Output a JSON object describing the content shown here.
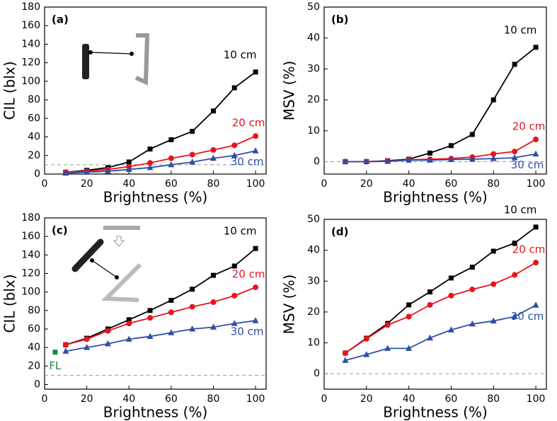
{
  "chart_data": [
    {
      "type": "line",
      "panel_label": "(a)",
      "x_label": "Brightness (%)",
      "y_label": "CIL (blx)",
      "x": [
        10,
        20,
        30,
        40,
        50,
        60,
        70,
        80,
        90,
        100
      ],
      "xlim": [
        0,
        105
      ],
      "xticks": [
        0,
        20,
        40,
        60,
        80,
        100
      ],
      "ylim": [
        0,
        180
      ],
      "yticks": [
        0,
        20,
        40,
        60,
        80,
        100,
        120,
        140,
        160,
        180
      ],
      "reference_line": 10,
      "series": [
        {
          "name": "10 cm",
          "color": "#000000",
          "marker": "square",
          "values": [
            2,
            4,
            7,
            13,
            27,
            37,
            46,
            68,
            93,
            110
          ]
        },
        {
          "name": "20 cm",
          "color": "#e8141c",
          "marker": "circle",
          "values": [
            2,
            3,
            5,
            8,
            12,
            17,
            21,
            26,
            31,
            41
          ]
        },
        {
          "name": "30 cm",
          "color": "#2e4fa8",
          "marker": "triangle",
          "values": [
            1,
            2,
            3,
            5,
            7,
            10,
            13,
            17,
            20,
            25
          ]
        }
      ]
    },
    {
      "type": "line",
      "panel_label": "(b)",
      "x_label": "Brightness (%)",
      "y_label": "MSV (%)",
      "x": [
        10,
        20,
        30,
        40,
        50,
        60,
        70,
        80,
        90,
        100
      ],
      "xlim": [
        0,
        105
      ],
      "xticks": [
        0,
        20,
        40,
        60,
        80,
        100
      ],
      "ylim": [
        -4,
        50
      ],
      "yticks": [
        0,
        10,
        20,
        30,
        40,
        50
      ],
      "reference_line": 0,
      "series": [
        {
          "name": "10 cm",
          "color": "#000000",
          "marker": "square",
          "values": [
            0,
            0,
            0.3,
            0.8,
            2.8,
            5.2,
            8.8,
            20,
            31.5,
            37
          ]
        },
        {
          "name": "20 cm",
          "color": "#e8141c",
          "marker": "circle",
          "values": [
            0,
            0,
            0.2,
            0.6,
            0.8,
            1,
            1.5,
            2.5,
            3.3,
            7.2
          ]
        },
        {
          "name": "30 cm",
          "color": "#2e4fa8",
          "marker": "triangle",
          "values": [
            0,
            0,
            0.1,
            0.5,
            0.5,
            0.7,
            0.8,
            1,
            1.3,
            2.5
          ]
        }
      ]
    },
    {
      "type": "line",
      "panel_label": "(c)",
      "x_label": "Brightness (%)",
      "y_label": "CIL (blx)",
      "x": [
        10,
        20,
        30,
        40,
        50,
        60,
        70,
        80,
        90,
        100
      ],
      "xlim": [
        0,
        105
      ],
      "xticks": [
        0,
        20,
        40,
        60,
        80,
        100
      ],
      "ylim": [
        -5,
        180
      ],
      "yticks": [
        0,
        20,
        40,
        60,
        80,
        100,
        120,
        140,
        160,
        180
      ],
      "reference_line": 10,
      "series": [
        {
          "name": "10 cm",
          "color": "#000000",
          "marker": "square",
          "values": [
            43,
            50,
            60,
            70,
            80,
            91,
            103,
            118,
            128,
            147
          ]
        },
        {
          "name": "20 cm",
          "color": "#e8141c",
          "marker": "circle",
          "values": [
            43,
            49,
            58,
            66,
            72,
            78,
            84,
            89,
            96,
            105
          ]
        },
        {
          "name": "30 cm",
          "color": "#2e4fa8",
          "marker": "triangle",
          "values": [
            36,
            40,
            44,
            49,
            52,
            56,
            60,
            62,
            66,
            69
          ]
        }
      ],
      "extra_points": [
        {
          "name": "FL",
          "x": 5,
          "value": 35,
          "color": "#1a8a3a",
          "marker": "square"
        }
      ]
    },
    {
      "type": "line",
      "panel_label": "(d)",
      "x_label": "Brightness (%)",
      "y_label": "MSV (%)",
      "x": [
        10,
        20,
        30,
        40,
        50,
        60,
        70,
        80,
        90,
        100
      ],
      "xlim": [
        0,
        105
      ],
      "xticks": [
        0,
        20,
        40,
        60,
        80,
        100
      ],
      "ylim": [
        -5,
        50
      ],
      "yticks": [
        0,
        10,
        20,
        30,
        40,
        50
      ],
      "reference_line": 0,
      "series": [
        {
          "name": "10 cm",
          "color": "#000000",
          "marker": "square",
          "values": [
            6.7,
            11.5,
            16.3,
            22.3,
            26.5,
            31,
            34.5,
            39.7,
            42.3,
            47.5
          ]
        },
        {
          "name": "20 cm",
          "color": "#e8141c",
          "marker": "circle",
          "values": [
            6.7,
            11.3,
            15.8,
            18.5,
            22.3,
            25.3,
            27.3,
            29,
            32,
            36
          ]
        },
        {
          "name": "30 cm",
          "color": "#2e4fa8",
          "marker": "triangle",
          "values": [
            4.3,
            6.2,
            8.2,
            8.2,
            11.6,
            14.2,
            16.1,
            17.1,
            18.5,
            22.2
          ]
        }
      ]
    }
  ]
}
